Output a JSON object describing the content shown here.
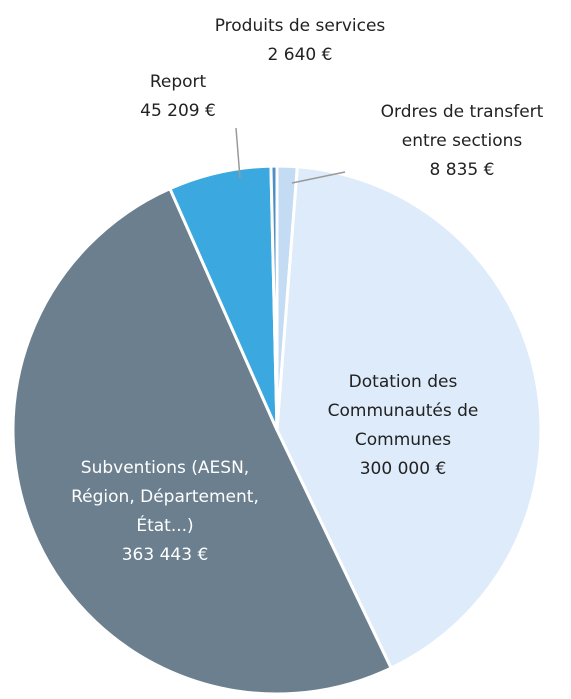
{
  "chart_data": {
    "type": "pie",
    "categories": [
      "Ordres de transfert entre sections",
      "Dotation des Communautés de Communes",
      "Subventions (AESN, Région, Département, État...)",
      "Report",
      "Produits de services"
    ],
    "values": [
      8835,
      300000,
      363443,
      45209,
      2640
    ],
    "value_labels": [
      "8 835 €",
      "300 000 €",
      "363 443 €",
      "45 209 €",
      "2 640 €"
    ],
    "colors": [
      "#c3dbf3",
      "#deebfa",
      "#6b7f8f",
      "#3ba9df",
      "#4f8fc4"
    ]
  }
}
